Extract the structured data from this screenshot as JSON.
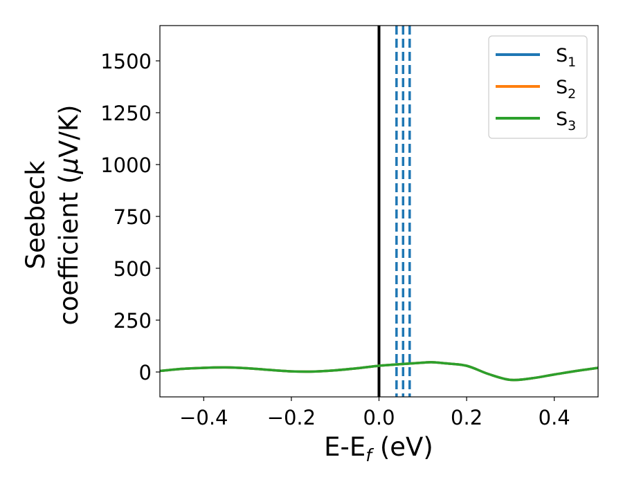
{
  "chart_data": {
    "type": "line",
    "xlabel": "E-E",
    "xlabel_sub": "f",
    "xlabel_unit": " (eV)",
    "ylabel_line1": "Seebeck",
    "ylabel_line2": "coefficient  (",
    "ylabel_mu": "μ",
    "ylabel_unit": "V/K)",
    "xlim": [
      -0.5,
      0.5
    ],
    "ylim": [
      -120,
      1670
    ],
    "x_ticks": [
      -0.4,
      -0.2,
      0.0,
      0.2,
      0.4
    ],
    "x_tick_labels": [
      "−0.4",
      "−0.2",
      "0.0",
      "0.2",
      "0.4"
    ],
    "y_ticks": [
      0,
      250,
      500,
      750,
      1000,
      1250,
      1500
    ],
    "y_tick_labels": [
      "0",
      "250",
      "500",
      "750",
      "1000",
      "1250",
      "1500"
    ],
    "grid": false,
    "legend_position": "top-right",
    "series": [
      {
        "name": "S",
        "sub": "1",
        "color": "#1f77b4",
        "x": [
          -0.5,
          -0.45,
          -0.4,
          -0.35,
          -0.3,
          -0.25,
          -0.2,
          -0.15,
          -0.1,
          -0.05,
          0.0,
          0.05,
          0.1,
          0.12,
          0.15,
          0.2,
          0.25,
          0.3,
          0.35,
          0.4,
          0.45,
          0.5
        ],
        "y": [
          5,
          15,
          20,
          22,
          18,
          10,
          3,
          2,
          8,
          18,
          30,
          38,
          45,
          47,
          42,
          30,
          -10,
          -38,
          -30,
          -12,
          5,
          20
        ]
      },
      {
        "name": "S",
        "sub": "2",
        "color": "#ff7f0e",
        "x": [
          -0.5,
          -0.45,
          -0.4,
          -0.35,
          -0.3,
          -0.25,
          -0.2,
          -0.15,
          -0.1,
          -0.05,
          0.0,
          0.05,
          0.1,
          0.12,
          0.15,
          0.2,
          0.25,
          0.3,
          0.35,
          0.4,
          0.45,
          0.5
        ],
        "y": [
          5,
          15,
          20,
          22,
          18,
          10,
          3,
          2,
          8,
          18,
          30,
          38,
          45,
          47,
          42,
          30,
          -10,
          -38,
          -30,
          -12,
          5,
          20
        ]
      },
      {
        "name": "S",
        "sub": "3",
        "color": "#2ca02c",
        "x": [
          -0.5,
          -0.45,
          -0.4,
          -0.35,
          -0.3,
          -0.25,
          -0.2,
          -0.15,
          -0.1,
          -0.05,
          0.0,
          0.05,
          0.1,
          0.12,
          0.15,
          0.2,
          0.25,
          0.3,
          0.35,
          0.4,
          0.45,
          0.5
        ],
        "y": [
          5,
          15,
          20,
          22,
          18,
          10,
          3,
          2,
          8,
          18,
          30,
          38,
          45,
          47,
          42,
          30,
          -10,
          -38,
          -30,
          -12,
          5,
          20
        ]
      }
    ],
    "vertical_lines": [
      {
        "x": 0.0,
        "style": "solid",
        "color": "#000000"
      },
      {
        "x": 0.04,
        "style": "dashed",
        "color": "#1f77b4"
      },
      {
        "x": 0.055,
        "style": "dashed",
        "color": "#1f77b4"
      },
      {
        "x": 0.07,
        "style": "dashed",
        "color": "#1f77b4"
      }
    ]
  }
}
